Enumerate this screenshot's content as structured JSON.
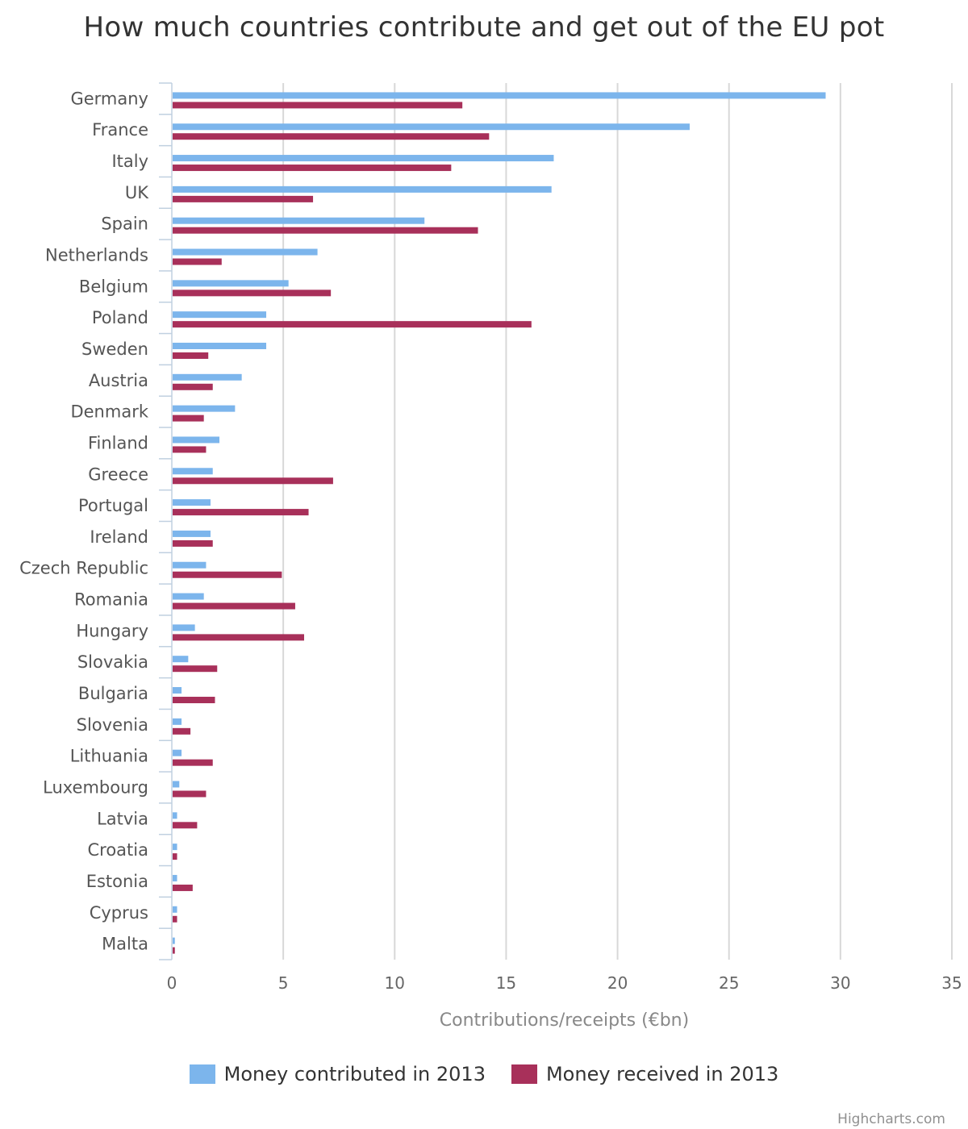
{
  "title": "How much countries contribute and get out of the EU pot",
  "credits": "Highcharts.com",
  "chart_data": {
    "type": "bar",
    "orientation": "horizontal",
    "title": "How much countries contribute and get out of the EU pot",
    "xlabel": "Contributions/receipts (€bn)",
    "categories": [
      "Germany",
      "France",
      "Italy",
      "UK",
      "Spain",
      "Netherlands",
      "Belgium",
      "Poland",
      "Sweden",
      "Austria",
      "Denmark",
      "Finland",
      "Greece",
      "Portugal",
      "Ireland",
      "Czech Republic",
      "Romania",
      "Hungary",
      "Slovakia",
      "Bulgaria",
      "Slovenia",
      "Lithuania",
      "Luxembourg",
      "Latvia",
      "Croatia",
      "Estonia",
      "Cyprus",
      "Malta"
    ],
    "series": [
      {
        "name": "Money contributed in 2013",
        "color": "#7cb5ec",
        "values": [
          29.3,
          23.2,
          17.1,
          17.0,
          11.3,
          6.5,
          5.2,
          4.2,
          4.2,
          3.1,
          2.8,
          2.1,
          1.8,
          1.7,
          1.7,
          1.5,
          1.4,
          1.0,
          0.7,
          0.4,
          0.4,
          0.4,
          0.3,
          0.2,
          0.2,
          0.2,
          0.2,
          0.1
        ]
      },
      {
        "name": "Money received in 2013",
        "color": "#a8305a",
        "values": [
          13.0,
          14.2,
          12.5,
          6.3,
          13.7,
          2.2,
          7.1,
          16.1,
          1.6,
          1.8,
          1.4,
          1.5,
          7.2,
          6.1,
          1.8,
          4.9,
          5.5,
          5.9,
          2.0,
          1.9,
          0.8,
          1.8,
          1.5,
          1.1,
          0.2,
          0.9,
          0.2,
          0.1
        ]
      }
    ],
    "xlim": [
      0,
      35
    ],
    "ticks": [
      "0",
      "5",
      "10",
      "15",
      "20",
      "25",
      "30",
      "35"
    ],
    "grid": true,
    "legend_position": "bottom-center"
  }
}
